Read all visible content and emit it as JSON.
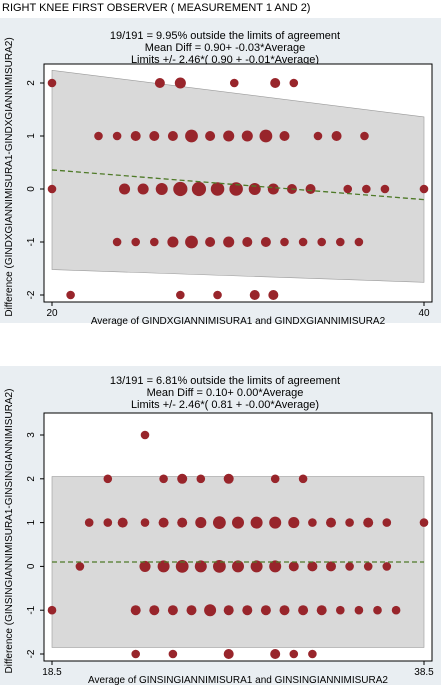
{
  "page_title": "RIGHT KNEE FIRST OBSERVER ( MEASUREMENT 1 AND 2)",
  "colors": {
    "panel_bg": "#e9eef2",
    "plot_bg": "#ffffff",
    "band": "#d9d9d9",
    "marker": "#98252b",
    "trend": "#4f7a28"
  },
  "chart_data": [
    {
      "type": "scatter",
      "title_lines": [
        "19/191 =   9.95% outside the limits of agreement",
        "Mean Diff =  0.90+ -0.03*Average",
        "Limits +/- 2.46*( 0.90 + -0.01*Average)"
      ],
      "xlabel": "Average of GINDXGIANNIMISURA1 and GINDXGIANNIMISURA2",
      "ylabel": "Difference (GINDXGIANNIMISURA1-GINDXGIANNIMISURA2)",
      "xlim": [
        20,
        40
      ],
      "ylim": [
        -2,
        2
      ],
      "x_ticks": [
        "20",
        "40"
      ],
      "y_ticks": [
        "-2",
        "-1",
        "0",
        "1",
        "2"
      ],
      "band_upper": [
        [
          20,
          2.24
        ],
        [
          40,
          1.36
        ]
      ],
      "band_lower": [
        [
          20,
          -1.52
        ],
        [
          40,
          -1.76
        ]
      ],
      "mean_line": [
        [
          20,
          0.36
        ],
        [
          40,
          -0.2
        ]
      ],
      "points": [
        {
          "x": 20,
          "y": 2,
          "n": 1
        },
        {
          "x": 25.8,
          "y": 2,
          "n": 2
        },
        {
          "x": 26.9,
          "y": 2,
          "n": 3
        },
        {
          "x": 29.8,
          "y": 2,
          "n": 1
        },
        {
          "x": 32.0,
          "y": 2,
          "n": 2
        },
        {
          "x": 33.0,
          "y": 2,
          "n": 1
        },
        {
          "x": 22.5,
          "y": 1,
          "n": 1
        },
        {
          "x": 23.5,
          "y": 1,
          "n": 1
        },
        {
          "x": 24.5,
          "y": 1,
          "n": 2
        },
        {
          "x": 25.5,
          "y": 1,
          "n": 2
        },
        {
          "x": 26.5,
          "y": 1,
          "n": 2
        },
        {
          "x": 27.5,
          "y": 1,
          "n": 5
        },
        {
          "x": 28.5,
          "y": 1,
          "n": 2
        },
        {
          "x": 29.5,
          "y": 1,
          "n": 3
        },
        {
          "x": 30.5,
          "y": 1,
          "n": 3
        },
        {
          "x": 31.5,
          "y": 1,
          "n": 5
        },
        {
          "x": 32.5,
          "y": 1,
          "n": 2
        },
        {
          "x": 34.3,
          "y": 1,
          "n": 1
        },
        {
          "x": 35.3,
          "y": 1,
          "n": 2
        },
        {
          "x": 36.8,
          "y": 1,
          "n": 1
        },
        {
          "x": 20,
          "y": 0,
          "n": 1
        },
        {
          "x": 23.9,
          "y": 0,
          "n": 3
        },
        {
          "x": 24.9,
          "y": 0,
          "n": 3
        },
        {
          "x": 25.9,
          "y": 0,
          "n": 4
        },
        {
          "x": 26.9,
          "y": 0,
          "n": 7
        },
        {
          "x": 27.9,
          "y": 0,
          "n": 7
        },
        {
          "x": 28.9,
          "y": 0,
          "n": 6
        },
        {
          "x": 29.9,
          "y": 0,
          "n": 6
        },
        {
          "x": 30.9,
          "y": 0,
          "n": 4
        },
        {
          "x": 31.9,
          "y": 0,
          "n": 3
        },
        {
          "x": 32.9,
          "y": 0,
          "n": 2
        },
        {
          "x": 33.9,
          "y": 0,
          "n": 2
        },
        {
          "x": 35.9,
          "y": 0,
          "n": 1
        },
        {
          "x": 36.9,
          "y": 0,
          "n": 1
        },
        {
          "x": 37.9,
          "y": 0,
          "n": 1
        },
        {
          "x": 40,
          "y": 0,
          "n": 1
        },
        {
          "x": 23.5,
          "y": -1,
          "n": 1
        },
        {
          "x": 24.5,
          "y": -1,
          "n": 1
        },
        {
          "x": 25.5,
          "y": -1,
          "n": 1
        },
        {
          "x": 26.5,
          "y": -1,
          "n": 3
        },
        {
          "x": 27.5,
          "y": -1,
          "n": 5
        },
        {
          "x": 28.5,
          "y": -1,
          "n": 2
        },
        {
          "x": 29.5,
          "y": -1,
          "n": 3
        },
        {
          "x": 30.5,
          "y": -1,
          "n": 2
        },
        {
          "x": 31.5,
          "y": -1,
          "n": 2
        },
        {
          "x": 32.5,
          "y": -1,
          "n": 1
        },
        {
          "x": 33.5,
          "y": -1,
          "n": 1
        },
        {
          "x": 34.5,
          "y": -1,
          "n": 1
        },
        {
          "x": 35.5,
          "y": -1,
          "n": 1
        },
        {
          "x": 36.5,
          "y": -1,
          "n": 1
        },
        {
          "x": 21.0,
          "y": -2,
          "n": 1
        },
        {
          "x": 26.9,
          "y": -2,
          "n": 1
        },
        {
          "x": 28.9,
          "y": -2,
          "n": 1
        },
        {
          "x": 30.9,
          "y": -2,
          "n": 2
        },
        {
          "x": 31.9,
          "y": -2,
          "n": 2
        }
      ]
    },
    {
      "type": "scatter",
      "title_lines": [
        "13/191 =   6.81% outside the limits of agreement",
        "Mean Diff =  0.10+  0.00*Average",
        "Limits +/- 2.46*( 0.81 + -0.00*Average)"
      ],
      "xlabel": "Average of GINSINGIANNIMISURA1 and GINSINGIANNIMISURA2",
      "ylabel": "Difference (GINSINGIANNIMISURA1-GINSINGIANNIMISURA2)",
      "xlim": [
        18.5,
        38.5
      ],
      "ylim": [
        -2,
        3
      ],
      "x_ticks": [
        "18.5",
        "38.5"
      ],
      "y_ticks": [
        "-2",
        "-1",
        "0",
        "1",
        "2",
        "3"
      ],
      "band_upper": [
        [
          18.5,
          2.05
        ],
        [
          38.5,
          2.05
        ]
      ],
      "band_lower": [
        [
          18.5,
          -1.85
        ],
        [
          38.5,
          -1.85
        ]
      ],
      "mean_line": [
        [
          18.5,
          0.1
        ],
        [
          38.5,
          0.1
        ]
      ],
      "points": [
        {
          "x": 23.5,
          "y": 3,
          "n": 1
        },
        {
          "x": 21.5,
          "y": 2,
          "n": 1
        },
        {
          "x": 24.5,
          "y": 2,
          "n": 1
        },
        {
          "x": 25.5,
          "y": 2,
          "n": 2
        },
        {
          "x": 26.5,
          "y": 2,
          "n": 1
        },
        {
          "x": 28,
          "y": 2,
          "n": 2
        },
        {
          "x": 30.5,
          "y": 2,
          "n": 1
        },
        {
          "x": 32,
          "y": 2,
          "n": 1
        },
        {
          "x": 20.5,
          "y": 1,
          "n": 1
        },
        {
          "x": 21.5,
          "y": 1,
          "n": 1
        },
        {
          "x": 22.3,
          "y": 1,
          "n": 2
        },
        {
          "x": 23.5,
          "y": 1,
          "n": 1
        },
        {
          "x": 24.5,
          "y": 1,
          "n": 2
        },
        {
          "x": 25.5,
          "y": 1,
          "n": 2
        },
        {
          "x": 26.5,
          "y": 1,
          "n": 3
        },
        {
          "x": 27.5,
          "y": 1,
          "n": 5
        },
        {
          "x": 28.5,
          "y": 1,
          "n": 4
        },
        {
          "x": 29.5,
          "y": 1,
          "n": 4
        },
        {
          "x": 30.5,
          "y": 1,
          "n": 4
        },
        {
          "x": 31.5,
          "y": 1,
          "n": 3
        },
        {
          "x": 32.5,
          "y": 1,
          "n": 1
        },
        {
          "x": 33.5,
          "y": 1,
          "n": 2
        },
        {
          "x": 34.5,
          "y": 1,
          "n": 1
        },
        {
          "x": 35.5,
          "y": 1,
          "n": 2
        },
        {
          "x": 36.5,
          "y": 1,
          "n": 1
        },
        {
          "x": 38.5,
          "y": 1,
          "n": 1
        },
        {
          "x": 20,
          "y": 0,
          "n": 1
        },
        {
          "x": 23.5,
          "y": 0,
          "n": 3
        },
        {
          "x": 24.5,
          "y": 0,
          "n": 4
        },
        {
          "x": 25.5,
          "y": 0,
          "n": 5
        },
        {
          "x": 26.5,
          "y": 0,
          "n": 4
        },
        {
          "x": 27.5,
          "y": 0,
          "n": 5
        },
        {
          "x": 28.5,
          "y": 0,
          "n": 4
        },
        {
          "x": 29.5,
          "y": 0,
          "n": 4
        },
        {
          "x": 30.5,
          "y": 0,
          "n": 4
        },
        {
          "x": 31.5,
          "y": 0,
          "n": 2
        },
        {
          "x": 32.5,
          "y": 0,
          "n": 2
        },
        {
          "x": 33.5,
          "y": 0,
          "n": 2
        },
        {
          "x": 34.5,
          "y": 0,
          "n": 1
        },
        {
          "x": 35.5,
          "y": 0,
          "n": 1
        },
        {
          "x": 36.5,
          "y": 0,
          "n": 1
        },
        {
          "x": 18.5,
          "y": -1,
          "n": 1
        },
        {
          "x": 23.0,
          "y": -1,
          "n": 2
        },
        {
          "x": 24.0,
          "y": -1,
          "n": 2
        },
        {
          "x": 25.0,
          "y": -1,
          "n": 2
        },
        {
          "x": 26.0,
          "y": -1,
          "n": 2
        },
        {
          "x": 27.0,
          "y": -1,
          "n": 4
        },
        {
          "x": 28.0,
          "y": -1,
          "n": 2
        },
        {
          "x": 29.0,
          "y": -1,
          "n": 2
        },
        {
          "x": 30.0,
          "y": -1,
          "n": 2
        },
        {
          "x": 31.0,
          "y": -1,
          "n": 2
        },
        {
          "x": 32.0,
          "y": -1,
          "n": 2
        },
        {
          "x": 33.0,
          "y": -1,
          "n": 2
        },
        {
          "x": 34.0,
          "y": -1,
          "n": 1
        },
        {
          "x": 35.0,
          "y": -1,
          "n": 1
        },
        {
          "x": 36.0,
          "y": -1,
          "n": 1
        },
        {
          "x": 37.0,
          "y": -1,
          "n": 1
        },
        {
          "x": 23.0,
          "y": -2,
          "n": 1
        },
        {
          "x": 25.0,
          "y": -2,
          "n": 1
        },
        {
          "x": 28.0,
          "y": -2,
          "n": 2
        },
        {
          "x": 30.5,
          "y": -2,
          "n": 2
        },
        {
          "x": 31.5,
          "y": -2,
          "n": 1
        },
        {
          "x": 32.5,
          "y": -2,
          "n": 1
        }
      ]
    }
  ]
}
